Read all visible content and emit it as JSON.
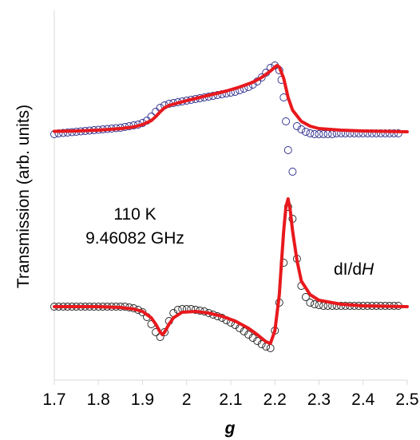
{
  "chart_data": {
    "type": "scatter",
    "xlabel": "g",
    "ylabel": "Transmission (arb. units)",
    "xlim": [
      1.7,
      2.5
    ],
    "x_ticks": [
      "1.7",
      "1.8",
      "1.9",
      "2",
      "2.1",
      "2.2",
      "2.3",
      "2.4",
      "2.5"
    ],
    "y_ticks": "none",
    "grid": false,
    "legend": "none",
    "annotations": {
      "temperature": "110 K",
      "frequency": "9.46082 GHz",
      "derivative_prefix": "dI/d",
      "derivative_var": "H"
    },
    "colors": {
      "fit": "#e8191d",
      "data_upper": "#2b2b8c",
      "data_lower": "#222222"
    },
    "series": [
      {
        "role": "measured",
        "panel": "upper",
        "x": [
          1.7,
          1.71,
          1.72,
          1.73,
          1.74,
          1.75,
          1.76,
          1.77,
          1.78,
          1.79,
          1.8,
          1.81,
          1.82,
          1.83,
          1.84,
          1.85,
          1.86,
          1.87,
          1.88,
          1.89,
          1.9,
          1.91,
          1.92,
          1.93,
          1.94,
          1.95,
          1.96,
          1.97,
          1.98,
          1.99,
          2.0,
          2.01,
          2.02,
          2.03,
          2.04,
          2.05,
          2.06,
          2.07,
          2.08,
          2.09,
          2.1,
          2.11,
          2.12,
          2.13,
          2.14,
          2.15,
          2.16,
          2.17,
          2.18,
          2.19,
          2.2,
          2.21,
          2.215,
          2.22,
          2.225,
          2.23,
          2.24,
          2.25,
          2.26,
          2.27,
          2.28,
          2.29,
          2.3,
          2.31,
          2.32,
          2.33,
          2.34,
          2.35,
          2.36,
          2.37,
          2.38,
          2.39,
          2.4,
          2.41,
          2.42,
          2.43,
          2.44,
          2.45,
          2.46,
          2.47,
          2.48
        ],
        "y": [
          0.02,
          0.03,
          0.035,
          0.04,
          0.045,
          0.05,
          0.055,
          0.06,
          0.065,
          0.07,
          0.075,
          0.08,
          0.085,
          0.09,
          0.095,
          0.1,
          0.11,
          0.12,
          0.13,
          0.14,
          0.16,
          0.19,
          0.24,
          0.3,
          0.35,
          0.38,
          0.4,
          0.41,
          0.42,
          0.43,
          0.44,
          0.45,
          0.46,
          0.47,
          0.48,
          0.49,
          0.5,
          0.51,
          0.52,
          0.53,
          0.54,
          0.55,
          0.57,
          0.59,
          0.61,
          0.64,
          0.68,
          0.73,
          0.79,
          0.85,
          0.88,
          0.82,
          0.7,
          0.48,
          0.18,
          -0.18,
          -0.45,
          0.12,
          0.08,
          0.05,
          0.03,
          0.02,
          0.02,
          0.02,
          0.02,
          0.02,
          0.03,
          0.03,
          0.03,
          0.03,
          0.03,
          0.03,
          0.03,
          0.03,
          0.03,
          0.03,
          0.03,
          0.03,
          0.03,
          0.03,
          0.03
        ]
      },
      {
        "role": "fit",
        "panel": "upper",
        "x": [
          1.7,
          1.75,
          1.8,
          1.85,
          1.88,
          1.9,
          1.92,
          1.93,
          1.94,
          1.95,
          1.96,
          1.98,
          2.0,
          2.03,
          2.06,
          2.09,
          2.12,
          2.15,
          2.17,
          2.19,
          2.2,
          2.205,
          2.21,
          2.22,
          2.23,
          2.24,
          2.26,
          2.28,
          2.3,
          2.35,
          2.4,
          2.45,
          2.5
        ],
        "y": [
          0.055,
          0.06,
          0.07,
          0.09,
          0.11,
          0.14,
          0.19,
          0.24,
          0.3,
          0.35,
          0.38,
          0.41,
          0.44,
          0.48,
          0.52,
          0.56,
          0.61,
          0.67,
          0.73,
          0.81,
          0.86,
          0.88,
          0.86,
          0.72,
          0.48,
          0.32,
          0.18,
          0.12,
          0.09,
          0.07,
          0.06,
          0.055,
          0.05
        ]
      },
      {
        "role": "measured",
        "panel": "lower",
        "x": [
          1.7,
          1.71,
          1.72,
          1.73,
          1.74,
          1.75,
          1.76,
          1.77,
          1.78,
          1.79,
          1.8,
          1.81,
          1.82,
          1.83,
          1.84,
          1.85,
          1.86,
          1.87,
          1.88,
          1.89,
          1.9,
          1.91,
          1.92,
          1.93,
          1.94,
          1.95,
          1.96,
          1.97,
          1.98,
          1.99,
          2.0,
          2.01,
          2.02,
          2.03,
          2.04,
          2.05,
          2.06,
          2.07,
          2.08,
          2.09,
          2.1,
          2.11,
          2.12,
          2.13,
          2.14,
          2.15,
          2.16,
          2.17,
          2.18,
          2.19,
          2.2,
          2.21,
          2.22,
          2.23,
          2.24,
          2.25,
          2.26,
          2.27,
          2.28,
          2.29,
          2.3,
          2.31,
          2.32,
          2.33,
          2.34,
          2.35,
          2.36,
          2.37,
          2.38,
          2.39,
          2.4,
          2.41,
          2.42,
          2.43,
          2.44,
          2.45,
          2.46,
          2.47,
          2.48
        ],
        "y": [
          0,
          0,
          0,
          0,
          0,
          0,
          0,
          0,
          0,
          0,
          0,
          0,
          0,
          0,
          0,
          0,
          0,
          -0.01,
          -0.02,
          -0.04,
          -0.07,
          -0.13,
          -0.22,
          -0.32,
          -0.38,
          -0.32,
          -0.18,
          -0.08,
          -0.04,
          -0.03,
          -0.03,
          -0.03,
          -0.04,
          -0.05,
          -0.06,
          -0.08,
          -0.1,
          -0.12,
          -0.14,
          -0.17,
          -0.2,
          -0.23,
          -0.27,
          -0.31,
          -0.35,
          -0.39,
          -0.43,
          -0.47,
          -0.5,
          -0.52,
          -0.3,
          0.05,
          0.55,
          1.25,
          1.1,
          0.6,
          0.26,
          0.12,
          0.05,
          0.03,
          0.02,
          0.01,
          0.01,
          0.01,
          0.01,
          0.01,
          0.01,
          0.01,
          0.01,
          0.01,
          0.01,
          0.01,
          0.01,
          0.01,
          0.01,
          0.01,
          0.01,
          0.01,
          0.01
        ]
      },
      {
        "role": "fit",
        "panel": "lower",
        "x": [
          1.7,
          1.8,
          1.85,
          1.88,
          1.9,
          1.92,
          1.93,
          1.94,
          1.945,
          1.95,
          1.96,
          1.97,
          1.99,
          2.02,
          2.05,
          2.08,
          2.11,
          2.14,
          2.16,
          2.18,
          2.19,
          2.2,
          2.21,
          2.215,
          2.22,
          2.225,
          2.23,
          2.235,
          2.24,
          2.25,
          2.26,
          2.28,
          2.3,
          2.35,
          2.4,
          2.45,
          2.5
        ],
        "y": [
          0,
          0,
          -0.01,
          -0.03,
          -0.06,
          -0.14,
          -0.22,
          -0.32,
          -0.35,
          -0.32,
          -0.22,
          -0.14,
          -0.07,
          -0.06,
          -0.08,
          -0.12,
          -0.18,
          -0.27,
          -0.35,
          -0.44,
          -0.46,
          -0.3,
          0.15,
          0.55,
          0.95,
          1.25,
          1.35,
          1.2,
          0.95,
          0.58,
          0.32,
          0.15,
          0.08,
          0.03,
          0.01,
          0.005,
          0
        ]
      }
    ]
  }
}
